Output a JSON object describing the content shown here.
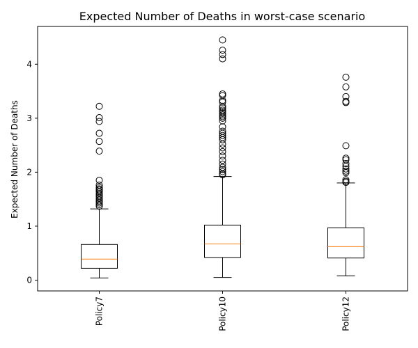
{
  "chart_data": {
    "type": "box",
    "title": "Expected Number of Deaths in worst-case scenario",
    "xlabel": "",
    "ylabel": "Expected Number of Deaths",
    "ylim": [
      -0.2,
      4.7
    ],
    "yticks": [
      0,
      1,
      2,
      3,
      4
    ],
    "grid": false,
    "legend": "none",
    "colors": {
      "box": "#000000",
      "median": "#ff7f0e",
      "outlier": "#000000"
    },
    "categories": [
      "Policy7",
      "Policy10",
      "Policy12"
    ],
    "boxes": [
      {
        "name": "Policy7",
        "whisker_low": 0.04,
        "q1": 0.22,
        "median": 0.39,
        "q3": 0.66,
        "whisker_high": 1.32,
        "outliers": [
          3.22,
          3.01,
          2.94,
          2.72,
          2.57,
          2.39,
          1.85,
          1.76,
          1.72,
          1.69,
          1.67,
          1.64,
          1.61,
          1.58,
          1.55,
          1.52,
          1.49,
          1.46,
          1.43,
          1.4,
          1.37
        ]
      },
      {
        "name": "Policy10",
        "whisker_low": 0.05,
        "q1": 0.42,
        "median": 0.67,
        "q3": 1.02,
        "whisker_high": 1.92,
        "outliers": [
          4.45,
          4.26,
          4.18,
          4.1,
          3.45,
          3.42,
          3.33,
          3.3,
          3.22,
          3.19,
          3.15,
          3.12,
          3.09,
          3.06,
          3.03,
          3.0,
          2.95,
          2.84,
          2.76,
          2.72,
          2.68,
          2.64,
          2.6,
          2.52,
          2.45,
          2.38,
          2.3,
          2.22,
          2.15,
          2.09,
          2.05,
          2.01,
          1.97,
          1.95
        ]
      },
      {
        "name": "Policy12",
        "whisker_low": 0.08,
        "q1": 0.41,
        "median": 0.62,
        "q3": 0.97,
        "whisker_high": 1.8,
        "outliers": [
          3.76,
          3.58,
          3.4,
          3.31,
          3.29,
          2.49,
          2.26,
          2.23,
          2.16,
          2.11,
          2.06,
          2.02,
          1.99,
          1.86,
          1.83,
          1.81
        ]
      }
    ]
  }
}
